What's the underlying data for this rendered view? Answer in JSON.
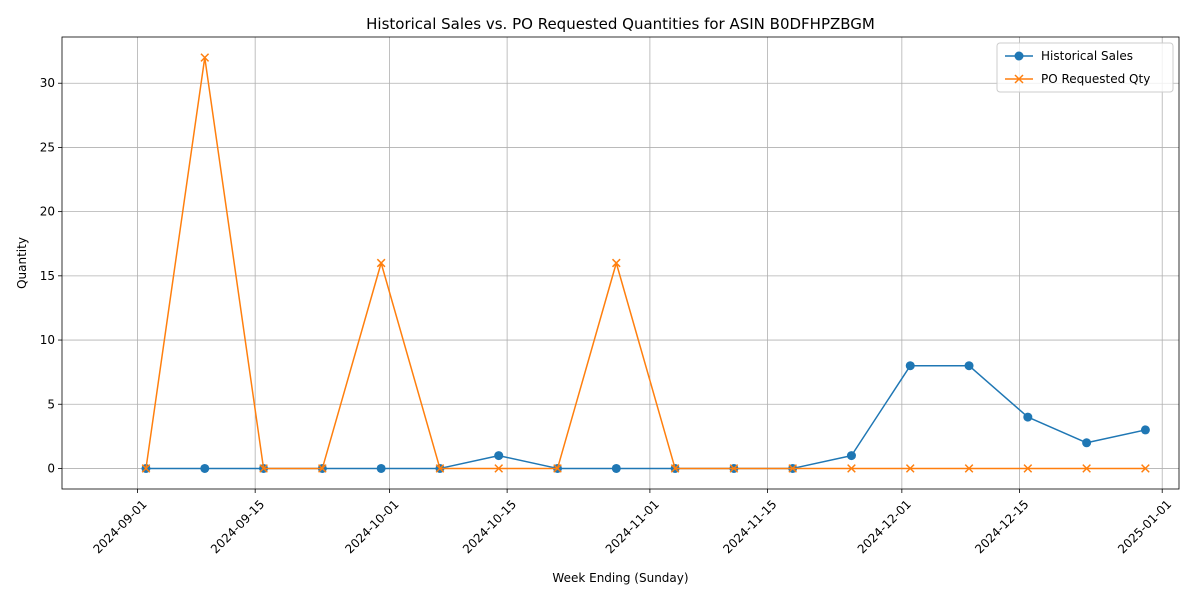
{
  "chart_data": {
    "type": "line",
    "title": "Historical Sales vs. PO Requested Quantities for ASIN B0DFHPZBGM",
    "xlabel": "Week Ending (Sunday)",
    "ylabel": "Quantity",
    "x_ticks": [
      "2024-09-01",
      "2024-09-15",
      "2024-10-01",
      "2024-10-15",
      "2024-11-01",
      "2024-11-15",
      "2024-12-01",
      "2024-12-15",
      "2025-01-01"
    ],
    "y_ticks": [
      0,
      5,
      10,
      15,
      20,
      25,
      30
    ],
    "ylim": [
      -1.6,
      33.6
    ],
    "xlim": [
      "2024-08-23",
      "2025-01-03"
    ],
    "grid": true,
    "legend_position": "top-right",
    "x": [
      "2024-09-02",
      "2024-09-09",
      "2024-09-16",
      "2024-09-23",
      "2024-09-30",
      "2024-10-07",
      "2024-10-14",
      "2024-10-21",
      "2024-10-28",
      "2024-11-04",
      "2024-11-11",
      "2024-11-18",
      "2024-11-25",
      "2024-12-02",
      "2024-12-09",
      "2024-12-16",
      "2024-12-23",
      "2024-12-30"
    ],
    "series": [
      {
        "name": "Historical Sales",
        "color": "#1f77b4",
        "marker": "circle",
        "values": [
          0,
          0,
          0,
          0,
          0,
          0,
          1,
          0,
          0,
          0,
          0,
          0,
          1,
          8,
          8,
          4,
          2,
          3
        ]
      },
      {
        "name": "PO Requested Qty",
        "color": "#ff7f0e",
        "marker": "x",
        "values": [
          0,
          32,
          0,
          0,
          16,
          0,
          0,
          0,
          16,
          0,
          0,
          0,
          0,
          0,
          0,
          0,
          0,
          0
        ]
      }
    ]
  }
}
